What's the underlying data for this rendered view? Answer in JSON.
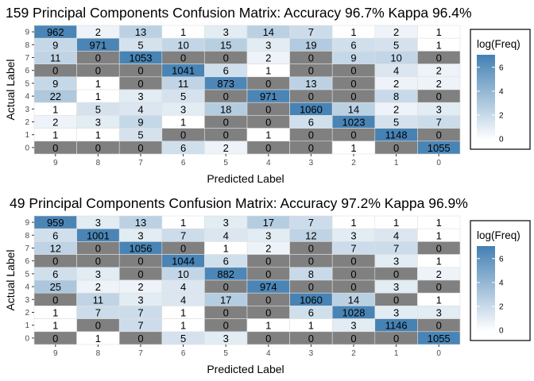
{
  "colors": {
    "low": "#ffffff",
    "high": "#4682b4",
    "zero": "#808080",
    "panel_bg": "#ebebeb",
    "cell_border": "#e0e0e0"
  },
  "chart_data": [
    {
      "type": "heatmap",
      "title": "159 Principal Components Confusion Matrix: Accuracy 96.7% Kappa 96.4%",
      "xlabel": "Predicted Label",
      "ylabel": "Actual Label",
      "x_categories": [
        "9",
        "8",
        "7",
        "6",
        "5",
        "4",
        "3",
        "2",
        "1",
        "0"
      ],
      "y_categories": [
        "9",
        "8",
        "7",
        "6",
        "5",
        "4",
        "3",
        "2",
        "1",
        "0"
      ],
      "values": [
        [
          962,
          2,
          13,
          1,
          3,
          14,
          7,
          1,
          2,
          1
        ],
        [
          9,
          971,
          5,
          10,
          15,
          3,
          19,
          6,
          5,
          1
        ],
        [
          11,
          0,
          1053,
          0,
          0,
          2,
          0,
          9,
          10,
          0
        ],
        [
          0,
          0,
          0,
          1041,
          6,
          1,
          0,
          0,
          4,
          2
        ],
        [
          9,
          1,
          0,
          11,
          873,
          0,
          13,
          0,
          2,
          2
        ],
        [
          22,
          1,
          3,
          5,
          0,
          971,
          0,
          0,
          8,
          0
        ],
        [
          1,
          5,
          4,
          3,
          18,
          0,
          1060,
          14,
          2,
          3
        ],
        [
          2,
          3,
          9,
          1,
          0,
          0,
          6,
          1023,
          5,
          7
        ],
        [
          1,
          1,
          5,
          0,
          0,
          1,
          0,
          0,
          1148,
          0
        ],
        [
          0,
          0,
          0,
          6,
          2,
          0,
          0,
          1,
          0,
          1055
        ]
      ],
      "legend": {
        "title": "log(Freq)",
        "breaks": [
          0,
          2,
          4,
          6
        ],
        "range": [
          0,
          7.05
        ],
        "position": "right"
      }
    },
    {
      "type": "heatmap",
      "title": "49 Principal Components Confusion Matrix: Accuracy 97.2% Kappa 96.9%",
      "xlabel": "Predicted Label",
      "ylabel": "Actual Label",
      "x_categories": [
        "9",
        "8",
        "7",
        "6",
        "5",
        "4",
        "3",
        "2",
        "1",
        "0"
      ],
      "y_categories": [
        "9",
        "8",
        "7",
        "6",
        "5",
        "4",
        "3",
        "2",
        "1",
        "0"
      ],
      "values": [
        [
          959,
          3,
          13,
          1,
          3,
          17,
          7,
          1,
          1,
          1
        ],
        [
          6,
          1001,
          3,
          7,
          4,
          3,
          12,
          3,
          4,
          1
        ],
        [
          12,
          0,
          1056,
          0,
          1,
          2,
          0,
          7,
          7,
          0
        ],
        [
          0,
          0,
          0,
          1044,
          6,
          0,
          0,
          0,
          3,
          1
        ],
        [
          6,
          3,
          0,
          10,
          882,
          0,
          8,
          0,
          0,
          2
        ],
        [
          25,
          2,
          2,
          4,
          0,
          974,
          0,
          0,
          3,
          0
        ],
        [
          0,
          11,
          3,
          4,
          17,
          0,
          1060,
          14,
          0,
          1
        ],
        [
          1,
          7,
          7,
          1,
          0,
          0,
          6,
          1028,
          3,
          3
        ],
        [
          1,
          0,
          7,
          1,
          0,
          1,
          1,
          3,
          1146,
          0
        ],
        [
          0,
          1,
          0,
          5,
          3,
          0,
          0,
          0,
          0,
          1055
        ]
      ],
      "legend": {
        "title": "log(Freq)",
        "breaks": [
          0,
          2,
          4,
          6
        ],
        "range": [
          0,
          7.05
        ],
        "position": "right"
      }
    }
  ]
}
